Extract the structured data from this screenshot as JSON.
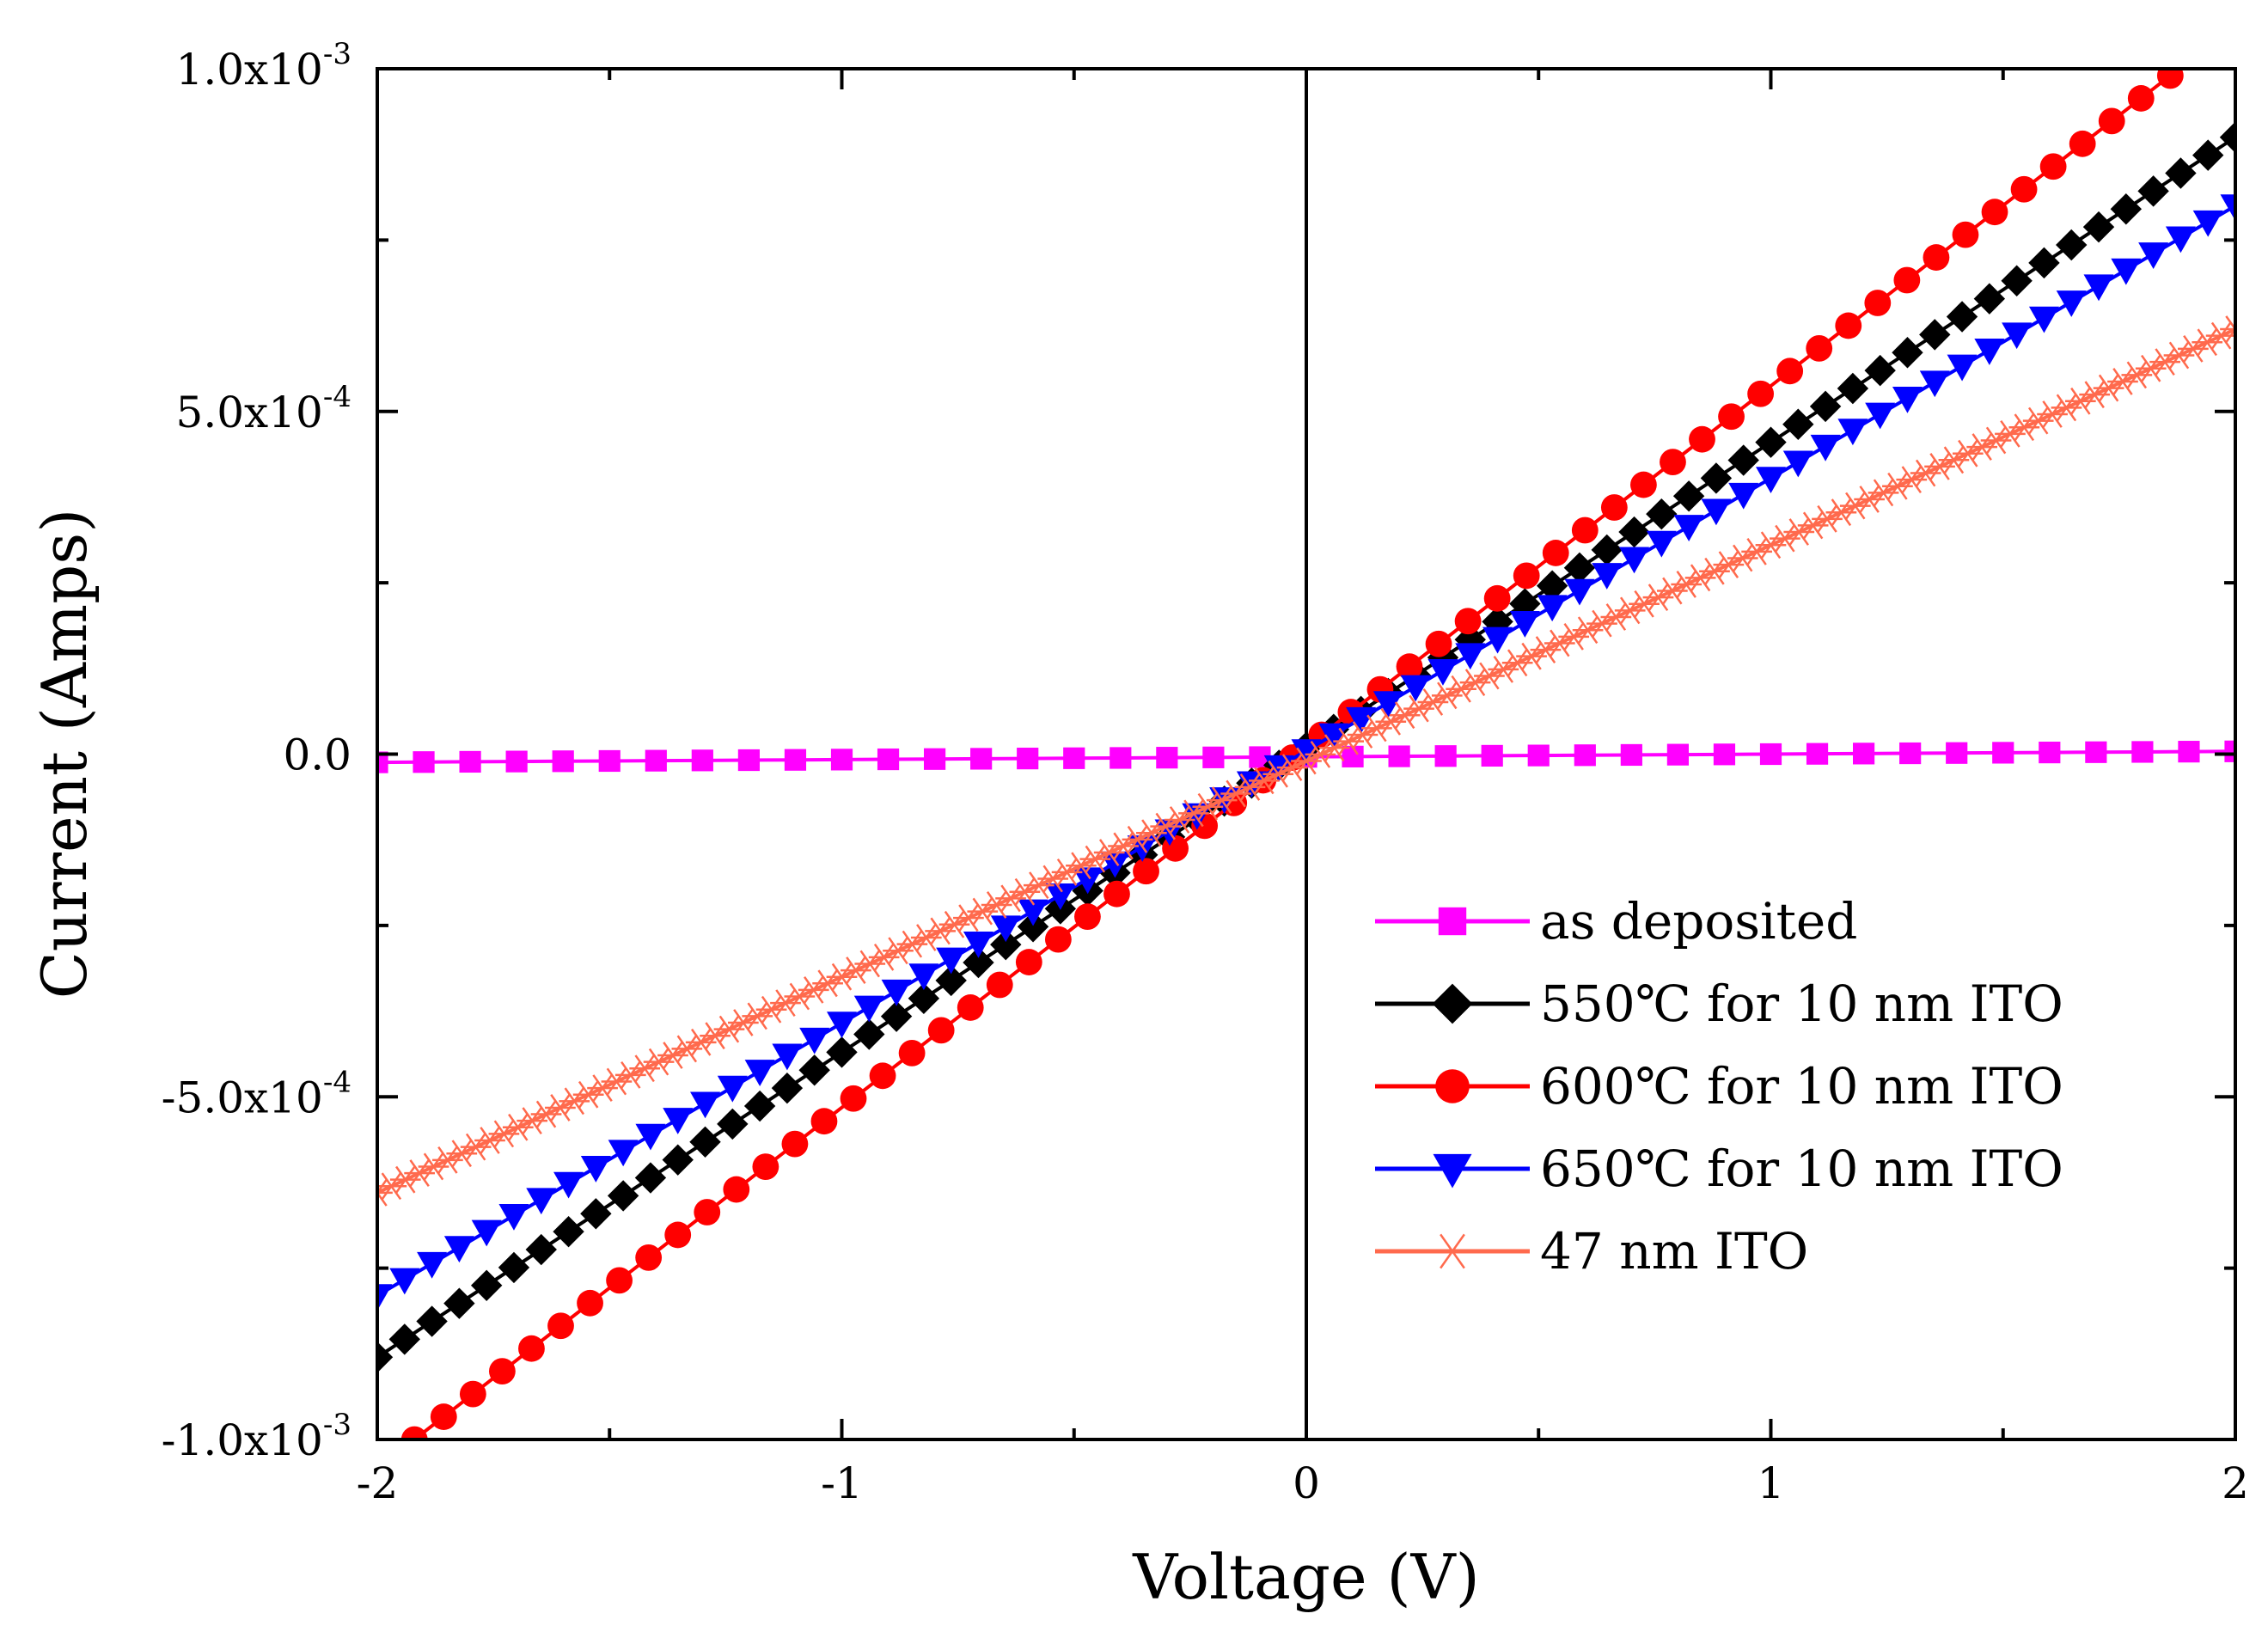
{
  "chart_data": {
    "type": "line",
    "title": "",
    "xlabel": "Voltage (V)",
    "ylabel": "Current (Amps)",
    "xlim": [
      -2,
      2
    ],
    "ylim": [
      -0.001,
      0.001
    ],
    "x_ticks": [
      {
        "value": -2,
        "label": "-2"
      },
      {
        "value": -1,
        "label": "-1"
      },
      {
        "value": 0,
        "label": "0"
      },
      {
        "value": 1,
        "label": "1"
      },
      {
        "value": 2,
        "label": "2"
      }
    ],
    "y_ticks": [
      {
        "value": 0.001,
        "mantissa": "1.0x10",
        "exponent": "-3"
      },
      {
        "value": 0.0005,
        "mantissa": "5.0x10",
        "exponent": "-4"
      },
      {
        "value": 0,
        "mantissa": "0.0",
        "exponent": ""
      },
      {
        "value": -0.0005,
        "mantissa": "-5.0x10",
        "exponent": "-4"
      },
      {
        "value": -0.001,
        "mantissa": "-1.0x10",
        "exponent": "-3"
      }
    ],
    "zero_line_x": 0,
    "legend_position": "bottom-right",
    "series": [
      {
        "name": "as deposited",
        "color": "#ff00ff",
        "marker": "square",
        "x_start": -2.0,
        "x_end": 2.0,
        "n_points": 41,
        "y_start": -1.2e-05,
        "y_end": 4e-06
      },
      {
        "name": "550℃ for 10 nm ITO",
        "color": "#000000",
        "marker": "diamond",
        "x_start": -2.0,
        "x_end": 2.0,
        "n_points": 69,
        "y_start": -0.00088,
        "y_end": 0.0009
      },
      {
        "name": "600℃ for 10 nm ITO",
        "color": "#ff0000",
        "marker": "circle",
        "x_start": -1.92,
        "x_end": 1.86,
        "n_points": 61,
        "y_start": -0.001,
        "y_end": 0.00099
      },
      {
        "name": "650℃ for 10 nm ITO",
        "color": "#0000ff",
        "marker": "triangle-down",
        "x_start": -2.0,
        "x_end": 2.0,
        "n_points": 69,
        "y_start": -0.00079,
        "y_end": 0.0008
      },
      {
        "name": "47 nm ITO",
        "color": "#ff6a4d",
        "marker": "asterisk",
        "x_start": -2.0,
        "x_end": 2.0,
        "n_points": 133,
        "y_start": -0.00064,
        "y_end": 0.00062
      }
    ]
  }
}
